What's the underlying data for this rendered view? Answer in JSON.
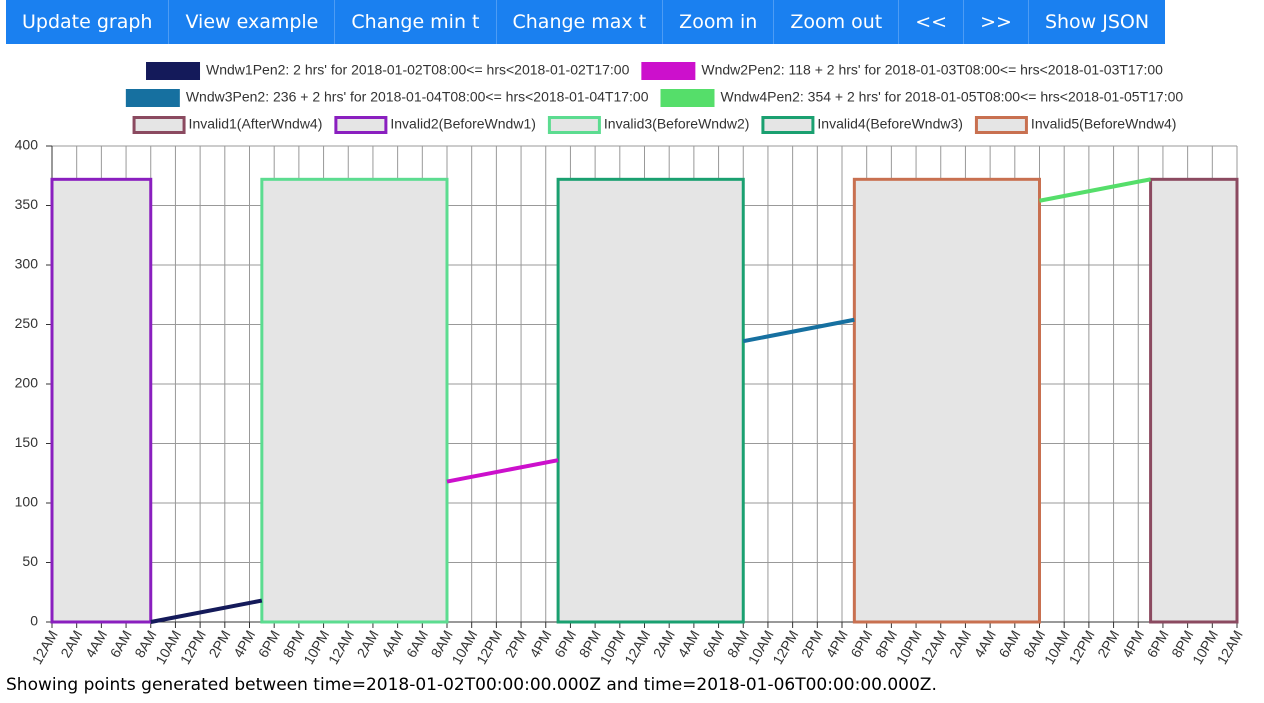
{
  "buttons": [
    "Update graph",
    "View example",
    "Change min t",
    "Change max t",
    "Zoom in",
    "Zoom out",
    "<<",
    ">>",
    "Show JSON"
  ],
  "chart_data": {
    "type": "line",
    "series": [
      {
        "name": "Wndw1Pen2: 2 hrs' for 2018-01-02T08:00<= hrs<2018-01-02T17:00",
        "color": "#141a5a",
        "x": [
          "2018-01-02T08:00",
          "2018-01-02T17:00"
        ],
        "values": [
          0,
          18
        ]
      },
      {
        "name": "Wndw2Pen2: 118 + 2 hrs' for 2018-01-03T08:00<= hrs<2018-01-03T17:00",
        "color": "#cc10cc",
        "x": [
          "2018-01-03T08:00",
          "2018-01-03T17:00"
        ],
        "values": [
          118,
          136
        ]
      },
      {
        "name": "Wndw3Pen2: 236 + 2 hrs' for 2018-01-04T08:00<= hrs<2018-01-04T17:00",
        "color": "#1670a0",
        "x": [
          "2018-01-04T08:00",
          "2018-01-04T17:00"
        ],
        "values": [
          236,
          254
        ]
      },
      {
        "name": "Wndw4Pen2: 354 + 2 hrs' for 2018-01-05T08:00<= hrs<2018-01-05T17:00",
        "color": "#55de6a",
        "x": [
          "2018-01-05T08:00",
          "2018-01-05T17:00"
        ],
        "values": [
          354,
          372
        ]
      }
    ],
    "regions": [
      {
        "name": "Invalid1(AfterWndw4)",
        "color": "#8b4a60",
        "x": [
          "2018-01-05T17:00",
          "2018-01-06T00:00"
        ],
        "values": [
          0,
          372
        ]
      },
      {
        "name": "Invalid2(BeforeWndw1)",
        "color": "#8a1fbf",
        "x": [
          "2018-01-02T00:00",
          "2018-01-02T08:00"
        ],
        "values": [
          0,
          372
        ]
      },
      {
        "name": "Invalid3(BeforeWndw2)",
        "color": "#5cdc90",
        "x": [
          "2018-01-02T17:00",
          "2018-01-03T08:00"
        ],
        "values": [
          0,
          372
        ]
      },
      {
        "name": "Invalid4(BeforeWndw3)",
        "color": "#1aa070",
        "x": [
          "2018-01-03T17:00",
          "2018-01-04T08:00"
        ],
        "values": [
          0,
          372
        ]
      },
      {
        "name": "Invalid5(BeforeWndw4)",
        "color": "#c87050",
        "x": [
          "2018-01-04T17:00",
          "2018-01-05T08:00"
        ],
        "values": [
          0,
          372
        ]
      }
    ],
    "region_fill": "#e5e5e5",
    "xlim": [
      "2018-01-02T00:00",
      "2018-01-06T00:00"
    ],
    "xticks": [
      {
        "value": "2018-01-02T00:00",
        "label": "12AM"
      },
      {
        "value": "2018-01-02T02:00",
        "label": "2AM"
      },
      {
        "value": "2018-01-02T04:00",
        "label": "4AM"
      },
      {
        "value": "2018-01-02T06:00",
        "label": "6AM"
      },
      {
        "value": "2018-01-02T08:00",
        "label": "8AM"
      },
      {
        "value": "2018-01-02T10:00",
        "label": "10AM"
      },
      {
        "value": "2018-01-02T12:00",
        "label": "12PM"
      },
      {
        "value": "2018-01-02T14:00",
        "label": "2PM"
      },
      {
        "value": "2018-01-02T16:00",
        "label": "4PM"
      },
      {
        "value": "2018-01-02T18:00",
        "label": "6PM"
      },
      {
        "value": "2018-01-02T20:00",
        "label": "8PM"
      },
      {
        "value": "2018-01-02T22:00",
        "label": "10PM"
      },
      {
        "value": "2018-01-03T00:00",
        "label": "12AM"
      },
      {
        "value": "2018-01-03T02:00",
        "label": "2AM"
      },
      {
        "value": "2018-01-03T04:00",
        "label": "4AM"
      },
      {
        "value": "2018-01-03T06:00",
        "label": "6AM"
      },
      {
        "value": "2018-01-03T08:00",
        "label": "8AM"
      },
      {
        "value": "2018-01-03T10:00",
        "label": "10AM"
      },
      {
        "value": "2018-01-03T12:00",
        "label": "12PM"
      },
      {
        "value": "2018-01-03T14:00",
        "label": "2PM"
      },
      {
        "value": "2018-01-03T16:00",
        "label": "4PM"
      },
      {
        "value": "2018-01-03T18:00",
        "label": "6PM"
      },
      {
        "value": "2018-01-03T20:00",
        "label": "8PM"
      },
      {
        "value": "2018-01-03T22:00",
        "label": "10PM"
      },
      {
        "value": "2018-01-04T00:00",
        "label": "12AM"
      },
      {
        "value": "2018-01-04T02:00",
        "label": "2AM"
      },
      {
        "value": "2018-01-04T04:00",
        "label": "4AM"
      },
      {
        "value": "2018-01-04T06:00",
        "label": "6AM"
      },
      {
        "value": "2018-01-04T08:00",
        "label": "8AM"
      },
      {
        "value": "2018-01-04T10:00",
        "label": "10AM"
      },
      {
        "value": "2018-01-04T12:00",
        "label": "12PM"
      },
      {
        "value": "2018-01-04T14:00",
        "label": "2PM"
      },
      {
        "value": "2018-01-04T16:00",
        "label": "4PM"
      },
      {
        "value": "2018-01-04T18:00",
        "label": "6PM"
      },
      {
        "value": "2018-01-04T20:00",
        "label": "8PM"
      },
      {
        "value": "2018-01-04T22:00",
        "label": "10PM"
      },
      {
        "value": "2018-01-05T00:00",
        "label": "12AM"
      },
      {
        "value": "2018-01-05T02:00",
        "label": "2AM"
      },
      {
        "value": "2018-01-05T04:00",
        "label": "4AM"
      },
      {
        "value": "2018-01-05T06:00",
        "label": "6AM"
      },
      {
        "value": "2018-01-05T08:00",
        "label": "8AM"
      },
      {
        "value": "2018-01-05T10:00",
        "label": "10AM"
      },
      {
        "value": "2018-01-05T12:00",
        "label": "12PM"
      },
      {
        "value": "2018-01-05T14:00",
        "label": "2PM"
      },
      {
        "value": "2018-01-05T16:00",
        "label": "4PM"
      },
      {
        "value": "2018-01-05T18:00",
        "label": "6PM"
      },
      {
        "value": "2018-01-05T20:00",
        "label": "8PM"
      },
      {
        "value": "2018-01-05T22:00",
        "label": "10PM"
      },
      {
        "value": "2018-01-06T00:00",
        "label": "12AM"
      }
    ],
    "ylim": [
      0,
      400
    ],
    "yticks": [
      0,
      50,
      100,
      150,
      200,
      250,
      300,
      350,
      400
    ],
    "grid": true
  },
  "footer": "Showing points generated between time=2018-01-02T00:00:00.000Z and time=2018-01-06T00:00:00.000Z."
}
